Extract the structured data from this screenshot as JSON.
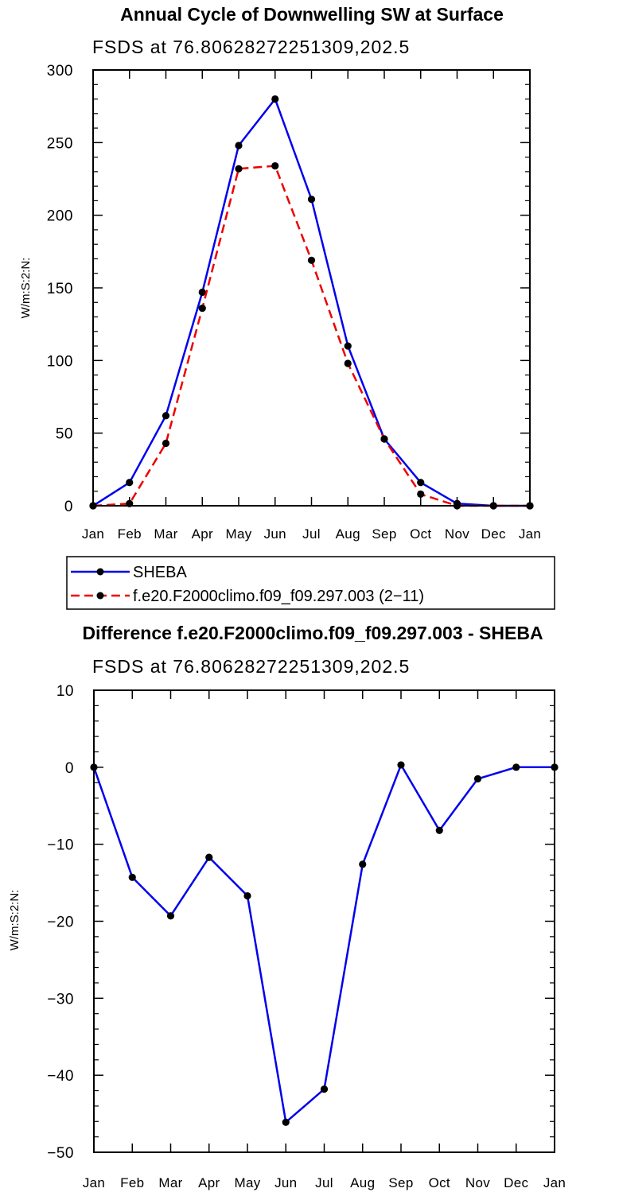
{
  "chart_data": [
    {
      "type": "line",
      "title": "Annual Cycle of Downwelling SW at Surface",
      "subtitle": "FSDS at 76.80628272251309,202.5",
      "xlabel": "",
      "ylabel": "W/m:S:2:N:",
      "categories": [
        "Jan",
        "Feb",
        "Mar",
        "Apr",
        "May",
        "Jun",
        "Jul",
        "Aug",
        "Sep",
        "Oct",
        "Nov",
        "Dec",
        "Jan"
      ],
      "ylim": [
        0,
        300
      ],
      "yticks": [
        "0",
        "50",
        "100",
        "150",
        "200",
        "250",
        "300"
      ],
      "grid": false,
      "legend": "below",
      "series": [
        {
          "name": "SHEBA",
          "color": "#0000ee",
          "dash": "solid",
          "values": [
            0,
            16,
            62,
            147,
            248,
            280,
            211,
            110,
            46,
            16,
            1.5,
            0,
            0
          ]
        },
        {
          "name": "f.e20.F2000climo.f09_f09.297.003 (2−11)",
          "color": "#ee0000",
          "dash": "dashed",
          "values": [
            0,
            1.5,
            43,
            136,
            232,
            234,
            169,
            98,
            46,
            8,
            0,
            0,
            0
          ]
        }
      ]
    },
    {
      "type": "line",
      "title": "Difference f.e20.F2000climo.f09_f09.297.003 - SHEBA",
      "subtitle": "FSDS at 76.80628272251309,202.5",
      "xlabel": "",
      "ylabel": "W/m:S:2:N:",
      "categories": [
        "Jan",
        "Feb",
        "Mar",
        "Apr",
        "May",
        "Jun",
        "Jul",
        "Aug",
        "Sep",
        "Oct",
        "Nov",
        "Dec",
        "Jan"
      ],
      "ylim": [
        -50,
        10
      ],
      "yticks": [
        "−50",
        "−40",
        "−30",
        "−20",
        "−10",
        "0",
        "10"
      ],
      "grid": false,
      "series": [
        {
          "color": "#0000ee",
          "dash": "solid",
          "values": [
            0,
            -14.3,
            -19.3,
            -11.7,
            -16.7,
            -46.1,
            -41.8,
            -12.6,
            0.3,
            -8.2,
            -1.5,
            0,
            0
          ]
        }
      ]
    }
  ]
}
